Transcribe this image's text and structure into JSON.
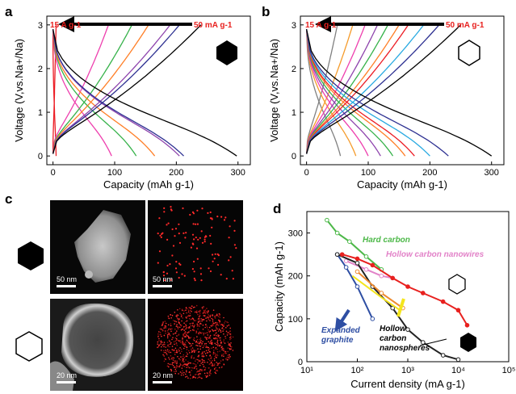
{
  "panels": {
    "a": "a",
    "b": "b",
    "c": "c",
    "d": "d"
  },
  "colors": {
    "rates": [
      "#ec1c24",
      "#ee3fae",
      "#36b24a",
      "#ff7f27",
      "#8e44ad",
      "#2e3192",
      "#000000"
    ],
    "hard_carbon": "#4cb848",
    "hollow_nanowires": "#e282c8",
    "expanded_graphite": "#2e4ea3",
    "hollow_nanospheres": "#222222",
    "this_work_hollow": "#e8211f",
    "this_work_yellow": "#f4e51d"
  },
  "chart_data": [
    {
      "id": "a",
      "type": "line",
      "xlabel": "Capacity (mAh g-1)",
      "ylabel": "Voltage (V,vs.Na+/Na)",
      "xlim": [
        -10,
        320
      ],
      "ylim": [
        -0.2,
        3.2
      ],
      "xticks": [
        "0",
        "100",
        "200",
        "300"
      ],
      "yticks": [
        "0",
        "1",
        "2",
        "3"
      ],
      "rate_high": "15 A g-1",
      "rate_low": "50 mA g-1",
      "icon": "filled-hexagon-icon",
      "series": [
        {
          "rate_index": 0,
          "discharge_cap": 5,
          "charge_cap": 5
        },
        {
          "rate_index": 1,
          "discharge_cap": 95,
          "charge_cap": 90
        },
        {
          "rate_index": 2,
          "discharge_cap": 135,
          "charge_cap": 128
        },
        {
          "rate_index": 3,
          "discharge_cap": 165,
          "charge_cap": 155
        },
        {
          "rate_index": 4,
          "discharge_cap": 205,
          "charge_cap": 190
        },
        {
          "rate_index": 5,
          "discharge_cap": 212,
          "charge_cap": 205
        },
        {
          "rate_index": 6,
          "discharge_cap": 298,
          "charge_cap": 240
        }
      ]
    },
    {
      "id": "b",
      "type": "line",
      "xlabel": "Capacity (mAh g-1)",
      "ylabel": "Voltage (V,vs.Na+/Na)",
      "xlim": [
        -10,
        320
      ],
      "ylim": [
        -0.2,
        3.2
      ],
      "xticks": [
        "0",
        "100",
        "200",
        "300"
      ],
      "yticks": [
        "0",
        "1",
        "2",
        "3"
      ],
      "rate_high": "15 A g-1",
      "rate_low": "50 mA g-1",
      "icon": "hollow-hexagon-icon",
      "series": [
        {
          "rate_index": 0,
          "discharge_cap": 55,
          "charge_cap": 50,
          "color": "#808080"
        },
        {
          "rate_index": 1,
          "discharge_cap": 80,
          "charge_cap": 75,
          "color": "#f59b2b"
        },
        {
          "rate_index": 2,
          "discharge_cap": 100,
          "charge_cap": 95,
          "color": "#ee3fae"
        },
        {
          "rate_index": 3,
          "discharge_cap": 120,
          "charge_cap": 115,
          "color": "#8e44ad"
        },
        {
          "rate_index": 4,
          "discharge_cap": 140,
          "charge_cap": 132,
          "color": "#36b24a"
        },
        {
          "rate_index": 5,
          "discharge_cap": 160,
          "charge_cap": 150,
          "color": "#ff7f27"
        },
        {
          "rate_index": 6,
          "discharge_cap": 175,
          "charge_cap": 165,
          "color": "#ec1c24"
        },
        {
          "rate_index": 7,
          "discharge_cap": 200,
          "charge_cap": 190,
          "color": "#27a9e1"
        },
        {
          "rate_index": 8,
          "discharge_cap": 230,
          "charge_cap": 215,
          "color": "#2e3192"
        },
        {
          "rate_index": 9,
          "discharge_cap": 300,
          "charge_cap": 250,
          "color": "#000000"
        }
      ]
    },
    {
      "id": "d",
      "type": "line",
      "xlabel": "Current density (mA g-1)",
      "ylabel": "Capacity (mAh g-1)",
      "xscale": "log",
      "xlim": [
        10,
        100000
      ],
      "ylim": [
        0,
        350
      ],
      "xticks": [
        "10¹",
        "10²",
        "10³",
        "10⁴",
        "10⁵"
      ],
      "yticks": [
        "0",
        "100",
        "200",
        "300"
      ],
      "series": [
        {
          "name": "Hard carbon",
          "color": "#4cb848",
          "x": [
            25,
            40,
            70,
            150,
            300
          ],
          "y": [
            330,
            300,
            280,
            245,
            215
          ],
          "marker": "open-circle"
        },
        {
          "name": "Hollow carbon nanowires",
          "color": "#e282c8",
          "x": [
            60,
            150,
            300,
            500
          ],
          "y": [
            235,
            215,
            200,
            195
          ],
          "marker": "open-circle"
        },
        {
          "name": "Expanded graphite",
          "color": "#2e4ea3",
          "x": [
            40,
            60,
            100,
            200
          ],
          "y": [
            250,
            220,
            175,
            100
          ],
          "marker": "open-circle"
        },
        {
          "name": "Hollow carbon nanospheres",
          "color": "#222222",
          "x": [
            40,
            100,
            200,
            500,
            1000,
            2000,
            5000,
            10000
          ],
          "y": [
            250,
            230,
            175,
            125,
            75,
            45,
            15,
            5
          ],
          "marker": "open-circle"
        },
        {
          "name": "",
          "color": "#f4e51d",
          "x": [
            80,
            300,
            700
          ],
          "y": [
            200,
            150,
            120
          ],
          "marker": "none"
        },
        {
          "name": "",
          "color": "#ee8a2f",
          "x": [
            100,
            300,
            800
          ],
          "y": [
            210,
            160,
            125
          ],
          "marker": "open-circle"
        },
        {
          "name": "",
          "color": "#e8211f",
          "x": [
            50,
            100,
            200,
            500,
            1000,
            2000,
            5000,
            10000,
            15000
          ],
          "y": [
            250,
            240,
            225,
            195,
            175,
            160,
            140,
            120,
            85
          ],
          "marker": "filled-circle"
        }
      ],
      "annotations": {
        "hard_carbon": "Hard carbon",
        "hollow_nanowires": "Hollow carbon nanowires",
        "expanded_graphite_1": "Expanded",
        "expanded_graphite_2": "graphite",
        "nanospheres_1": "Hollow",
        "nanospheres_2": "carbon",
        "nanospheres_3": "nanospheres"
      }
    }
  ],
  "panel_c": {
    "scale_top_left": "50 nm",
    "scale_top_right": "50 nm",
    "scale_bottom_left": "20 nm",
    "scale_bottom_right": "20 nm"
  }
}
